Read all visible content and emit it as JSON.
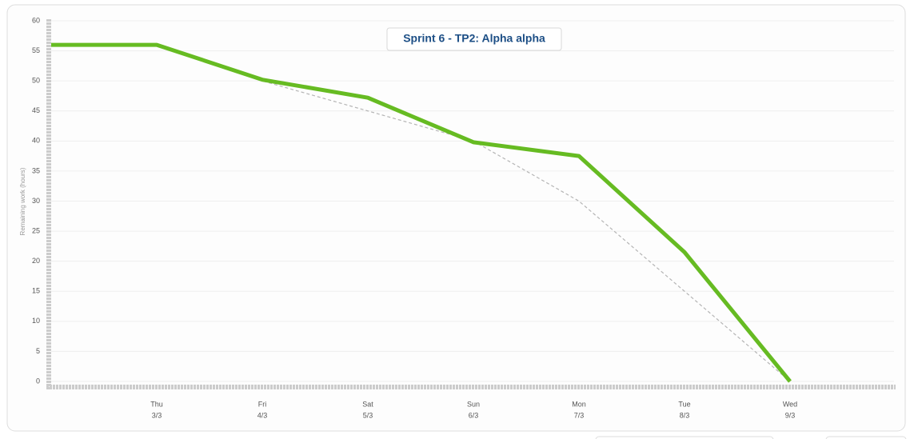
{
  "chart_data": {
    "type": "line",
    "title": "Sprint 6 - TP2: Alpha alpha",
    "y_label": "Remaining work (hours)",
    "categories": [
      null,
      "Thu",
      "Fri",
      "Sat",
      "Sun",
      "Mon",
      "Tue",
      "Wed",
      null
    ],
    "dates": [
      null,
      "3/3",
      "4/3",
      "5/3",
      "6/3",
      "7/3",
      "8/3",
      "9/3",
      null
    ],
    "series": [
      {
        "color": "#66bb22",
        "style": "solid",
        "values": [
          56,
          56,
          50.2,
          47.2,
          39.8,
          37.5,
          21.5,
          0,
          null
        ]
      },
      {
        "color": "#b5b5b5",
        "style": "dashed",
        "values": [
          56,
          56,
          50,
          45,
          40,
          30,
          15,
          0,
          null
        ]
      }
    ],
    "ylim": [
      0,
      60
    ],
    "yticks": [
      0,
      5,
      10,
      15,
      20,
      25,
      30,
      35,
      40,
      45,
      50,
      55,
      60
    ],
    "grid": true
  }
}
